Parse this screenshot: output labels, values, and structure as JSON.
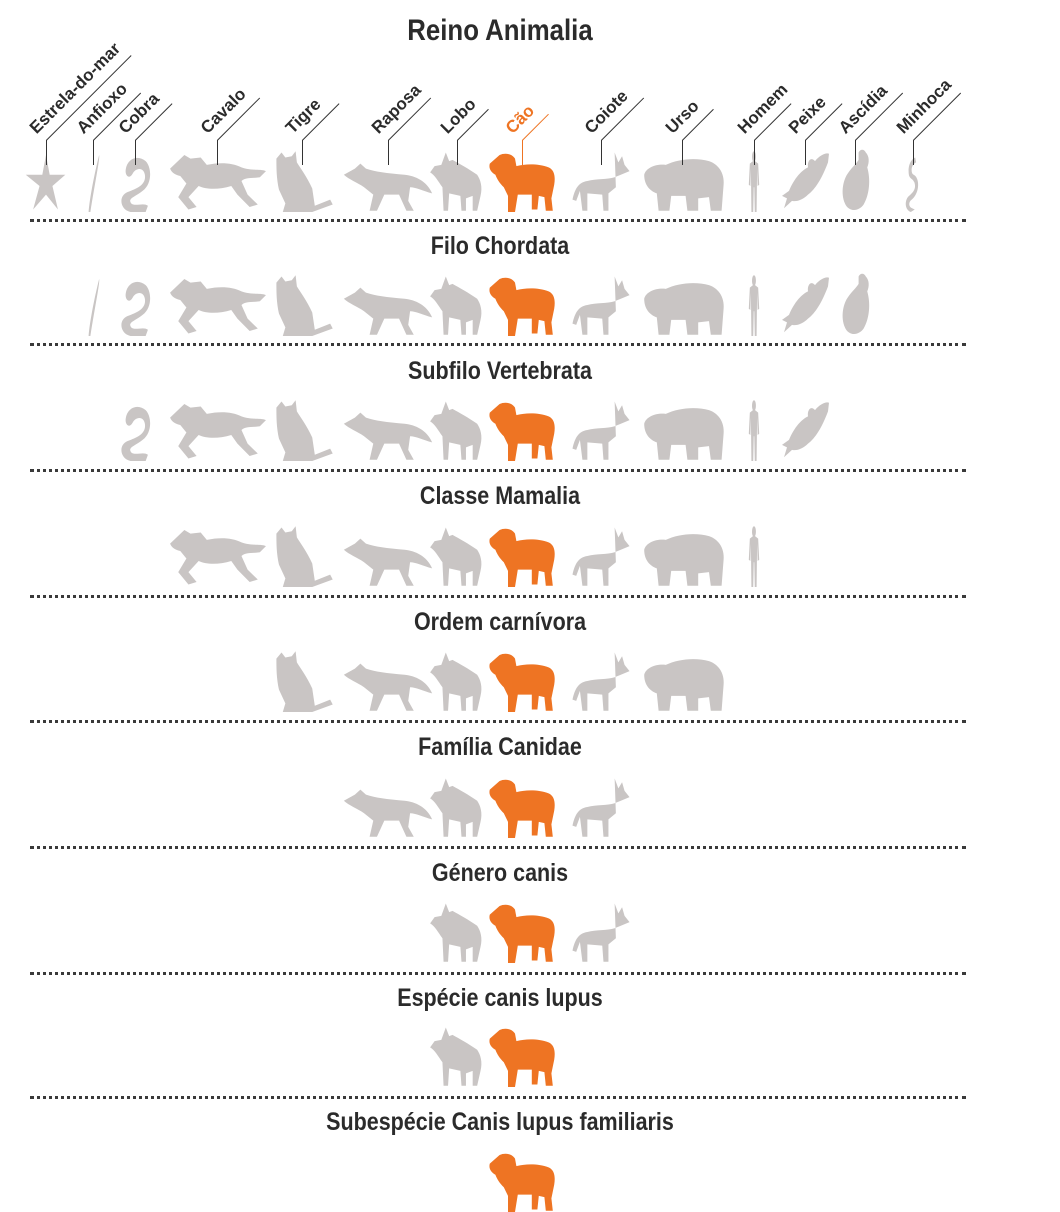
{
  "colors": {
    "highlight": "#ee7423",
    "silhouette": "#c9c5c4",
    "text": "#2b2b2b"
  },
  "levels": [
    {
      "title": "Reino Animalia",
      "members": [
        "estrela",
        "anfioxo",
        "cobra",
        "cavalo",
        "tigre",
        "raposa",
        "lobo",
        "cao",
        "coiote",
        "urso",
        "homem",
        "peixe",
        "ascidia",
        "minhoca"
      ]
    },
    {
      "title": "Filo Chordata",
      "members": [
        "anfioxo",
        "cobra",
        "cavalo",
        "tigre",
        "raposa",
        "lobo",
        "cao",
        "coiote",
        "urso",
        "homem",
        "peixe",
        "ascidia"
      ]
    },
    {
      "title": "Subfilo Vertebrata",
      "members": [
        "cobra",
        "cavalo",
        "tigre",
        "raposa",
        "lobo",
        "cao",
        "coiote",
        "urso",
        "homem",
        "peixe"
      ]
    },
    {
      "title": "Classe Mamalia",
      "members": [
        "cavalo",
        "tigre",
        "raposa",
        "lobo",
        "cao",
        "coiote",
        "urso",
        "homem"
      ]
    },
    {
      "title": "Ordem carnívora",
      "members": [
        "tigre",
        "raposa",
        "lobo",
        "cao",
        "coiote",
        "urso"
      ]
    },
    {
      "title": "Família Canidae",
      "members": [
        "raposa",
        "lobo",
        "cao",
        "coiote"
      ]
    },
    {
      "title": "Género canis",
      "members": [
        "lobo",
        "cao",
        "coiote"
      ]
    },
    {
      "title": "Espécie canis lupus",
      "members": [
        "lobo",
        "cao"
      ]
    },
    {
      "title": "Subespécie Canis lupus familiaris",
      "members": [
        "cao"
      ]
    }
  ],
  "animals": [
    {
      "id": "estrela",
      "label": "Estrela-do-mar",
      "icon": "starfish-icon"
    },
    {
      "id": "anfioxo",
      "label": "Anfioxo",
      "icon": "lancelet-icon"
    },
    {
      "id": "cobra",
      "label": "Cobra",
      "icon": "snake-icon"
    },
    {
      "id": "cavalo",
      "label": "Cavalo",
      "icon": "horse-icon"
    },
    {
      "id": "tigre",
      "label": "Tigre",
      "icon": "tiger-icon"
    },
    {
      "id": "raposa",
      "label": "Raposa",
      "icon": "fox-icon"
    },
    {
      "id": "lobo",
      "label": "Lobo",
      "icon": "wolf-icon"
    },
    {
      "id": "cao",
      "label": "Cão",
      "icon": "dog-icon",
      "highlight": true
    },
    {
      "id": "coiote",
      "label": "Coiote",
      "icon": "coyote-icon"
    },
    {
      "id": "urso",
      "label": "Urso",
      "icon": "bear-icon"
    },
    {
      "id": "homem",
      "label": "Homem",
      "icon": "human-icon"
    },
    {
      "id": "peixe",
      "label": "Peixe",
      "icon": "fish-icon"
    },
    {
      "id": "ascidia",
      "label": "Ascídia",
      "icon": "sea-squirt-icon"
    },
    {
      "id": "minhoca",
      "label": "Minhoca",
      "icon": "worm-icon"
    }
  ]
}
